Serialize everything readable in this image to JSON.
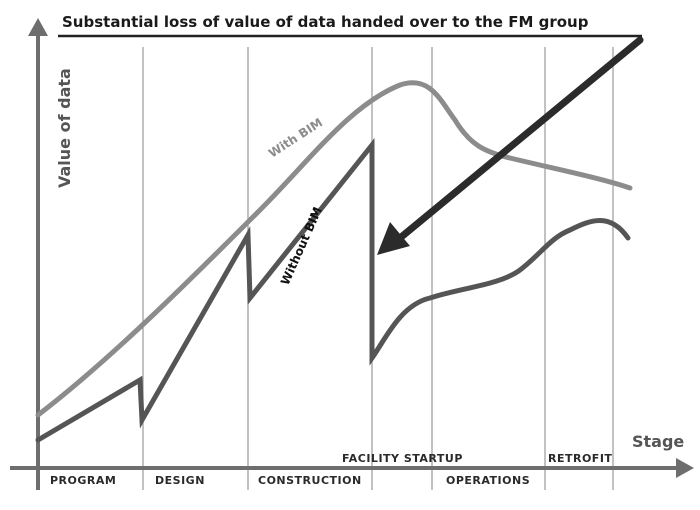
{
  "title": "Substantial loss of value of data handed over to the FM group",
  "y_axis_label": "Value of data",
  "x_axis_label": "Stage",
  "stages_bottom": [
    "PROGRAM",
    "DESIGN",
    "CONSTRUCTION",
    "OPERATIONS"
  ],
  "stages_top": [
    "FACILITY STARTUP",
    "RETROFIT"
  ],
  "curves": {
    "with_bim": "With BIM",
    "without_bim": "Without BIM"
  },
  "colors": {
    "with_bim_line": "#8c8c8c",
    "without_bim_line": "#555555",
    "arrow": "#2b2b2b",
    "axis": "#6e6e6e",
    "divider": "#9a9a9a"
  }
}
